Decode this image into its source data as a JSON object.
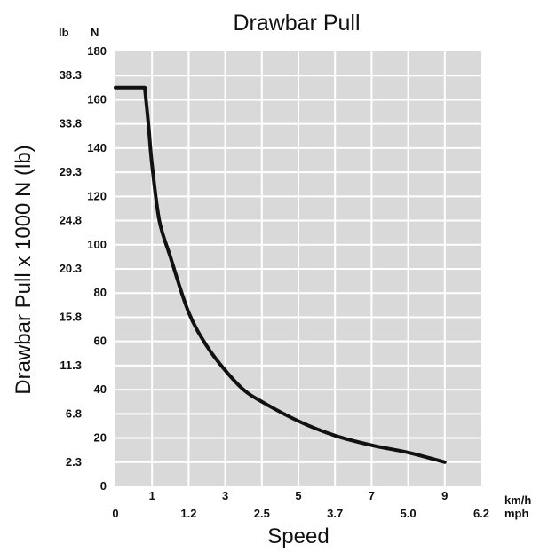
{
  "chart_data": {
    "type": "line",
    "title": "Drawbar Pull",
    "ylabel": "Drawbar Pull x 1000 N (lb)",
    "xlabel": "Speed",
    "y_unit_left": "lb",
    "y_unit_right": "N",
    "x_unit_top": "km/h",
    "x_unit_bottom": "mph",
    "ylim": [
      0,
      180
    ],
    "xlim": [
      0,
      10
    ],
    "grid": true,
    "y_ticks_N": [
      "0",
      "20",
      "40",
      "60",
      "80",
      "100",
      "120",
      "140",
      "160",
      "180"
    ],
    "y_ticks_lb": [
      "2.3",
      "6.8",
      "11.3",
      "15.8",
      "20.3",
      "24.8",
      "29.3",
      "33.8",
      "38.3"
    ],
    "x_ticks_kmh": [
      "1",
      "3",
      "5",
      "7",
      "9"
    ],
    "x_ticks_mph": [
      "0",
      "1.2",
      "2.5",
      "3.7",
      "5.0",
      "6.2"
    ],
    "series": [
      {
        "x": [
          0,
          0.8,
          0.9,
          1.0,
          1.2,
          1.5,
          2.0,
          2.5,
          3.0,
          3.5,
          4.0,
          5.0,
          6.0,
          7.0,
          8.0,
          9.0
        ],
        "y": [
          165,
          165,
          150,
          133,
          110,
          95,
          72,
          58,
          48,
          40,
          35,
          27,
          21,
          17,
          14,
          10
        ]
      }
    ]
  }
}
